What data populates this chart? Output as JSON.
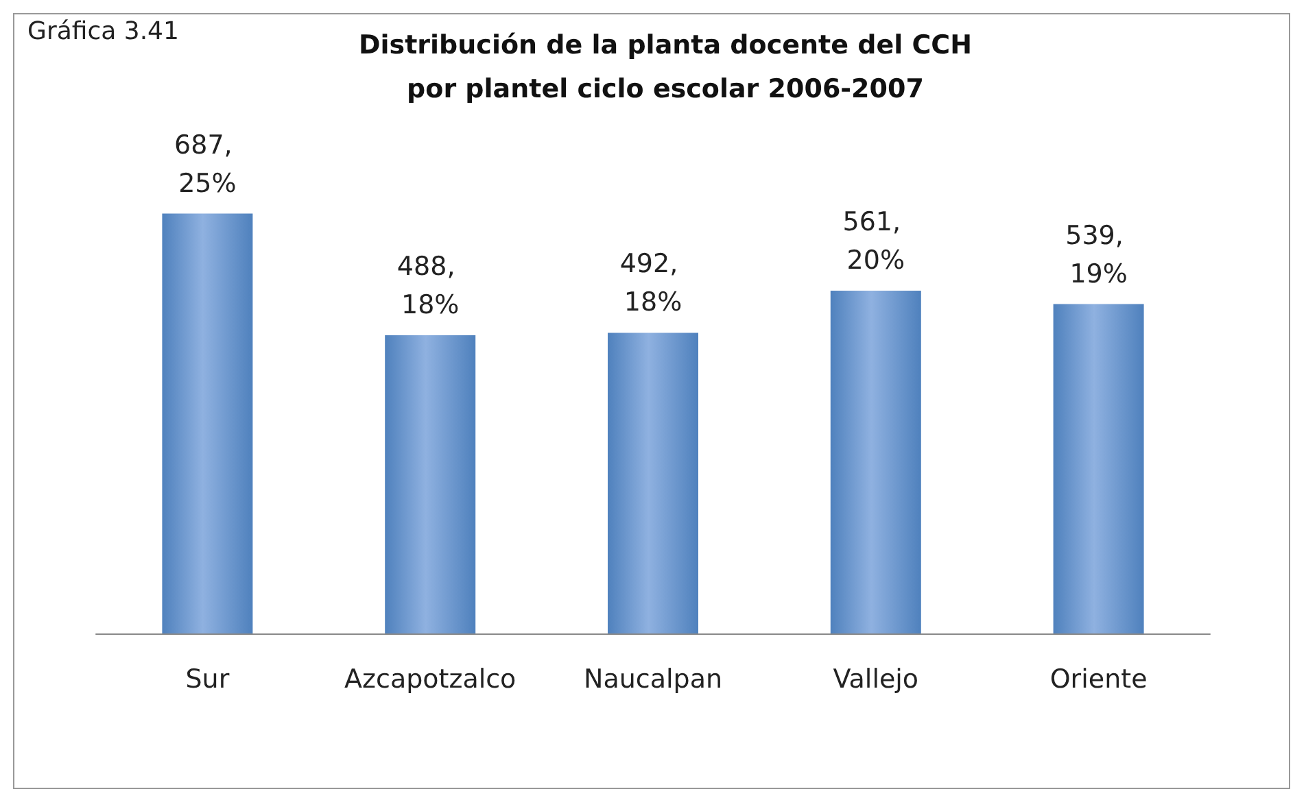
{
  "chart_data": {
    "type": "bar",
    "title": "Distribución de la planta docente del CCH\npor plantel ciclo escolar 2006-2007",
    "annotations": [
      "Gráfica 3.41"
    ],
    "categories": [
      "Sur",
      "Azcapotzalco",
      "Naucalpan",
      "Vallejo",
      "Oriente"
    ],
    "values": [
      687,
      488,
      492,
      561,
      539
    ],
    "value_labels": [
      "687, 25%",
      "488, 18%",
      "492, 18%",
      "561, 20%",
      "539, 19%"
    ],
    "color": "#4f81bd"
  }
}
